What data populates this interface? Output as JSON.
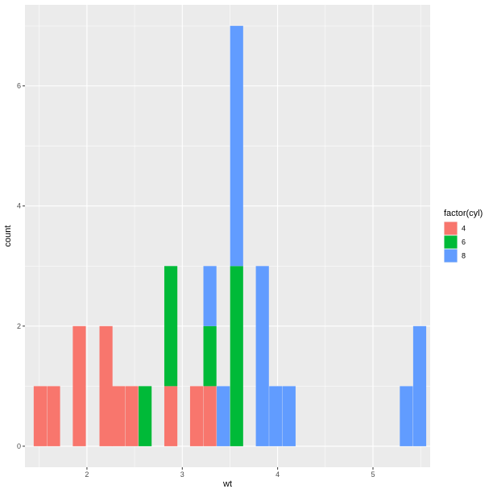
{
  "chart_data": {
    "type": "bar",
    "subtype": "stacked-histogram",
    "xlabel": "wt",
    "ylabel": "count",
    "xlim": [
      1.35,
      5.6
    ],
    "ylim": [
      -0.35,
      7.35
    ],
    "x_ticks": [
      2,
      3,
      4,
      5
    ],
    "y_ticks": [
      0,
      2,
      4,
      6
    ],
    "bin_width": 0.1368,
    "grid": true,
    "legend": {
      "title": "factor(cyl)",
      "position": "right"
    },
    "series": [
      {
        "name": "4",
        "color": "#F8766D",
        "bins": [
          {
            "x": 1.51,
            "count": 1
          },
          {
            "x": 1.65,
            "count": 1
          },
          {
            "x": 1.92,
            "count": 2
          },
          {
            "x": 2.2,
            "count": 2
          },
          {
            "x": 2.33,
            "count": 1
          },
          {
            "x": 2.47,
            "count": 1
          },
          {
            "x": 2.88,
            "count": 1
          },
          {
            "x": 3.15,
            "count": 1
          },
          {
            "x": 3.29,
            "count": 1
          }
        ]
      },
      {
        "name": "6",
        "color": "#00BA38",
        "bins": [
          {
            "x": 2.61,
            "count": 1
          },
          {
            "x": 2.88,
            "count": 2
          },
          {
            "x": 3.29,
            "count": 1
          },
          {
            "x": 3.57,
            "count": 3
          }
        ]
      },
      {
        "name": "8",
        "color": "#619CFF",
        "bins": [
          {
            "x": 3.29,
            "count": 1
          },
          {
            "x": 3.43,
            "count": 1
          },
          {
            "x": 3.57,
            "count": 4
          },
          {
            "x": 3.84,
            "count": 3
          },
          {
            "x": 3.98,
            "count": 1
          },
          {
            "x": 4.12,
            "count": 1
          },
          {
            "x": 5.35,
            "count": 1
          },
          {
            "x": 5.49,
            "count": 2
          }
        ]
      }
    ]
  }
}
